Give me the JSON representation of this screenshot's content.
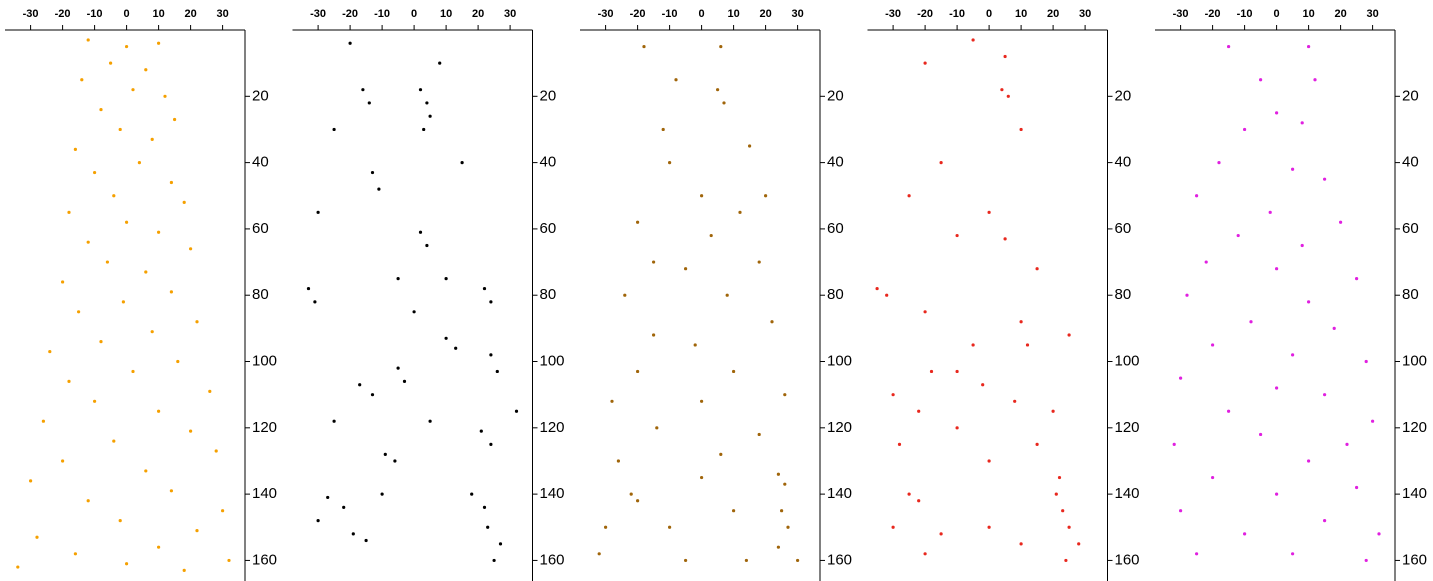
{
  "chart_data": [
    {
      "type": "scatter",
      "color": "#f5a000",
      "xlim": [
        -38,
        37
      ],
      "ylim": [
        0,
        165
      ],
      "y_reversed": true,
      "xticks": [
        -30,
        -20,
        -10,
        0,
        10,
        20,
        30
      ],
      "yticks": [
        20,
        40,
        60,
        80,
        100,
        120,
        140,
        160
      ],
      "x": [
        -12,
        0,
        10,
        -5,
        6,
        -14,
        2,
        12,
        -8,
        15,
        -2,
        8,
        -16,
        4,
        -10,
        14,
        -4,
        18,
        -18,
        0,
        10,
        -12,
        20,
        -6,
        6,
        -20,
        14,
        -1,
        -15,
        22,
        8,
        -8,
        -24,
        16,
        2,
        -18,
        26,
        -10,
        10,
        -26,
        20,
        -4,
        28,
        -20,
        6,
        -30,
        14,
        -12,
        30,
        -2,
        22,
        -28,
        10,
        -16,
        32,
        0,
        -34,
        18
      ],
      "values": [
        3,
        5,
        4,
        10,
        12,
        15,
        18,
        20,
        24,
        27,
        30,
        33,
        36,
        40,
        43,
        46,
        50,
        52,
        55,
        58,
        61,
        64,
        66,
        70,
        73,
        76,
        79,
        82,
        85,
        88,
        91,
        94,
        97,
        100,
        103,
        106,
        109,
        112,
        115,
        118,
        121,
        124,
        127,
        130,
        133,
        136,
        139,
        142,
        145,
        148,
        151,
        153,
        156,
        158,
        160,
        161,
        162,
        163
      ]
    },
    {
      "type": "scatter",
      "color": "#000000",
      "xlim": [
        -38,
        37
      ],
      "ylim": [
        0,
        165
      ],
      "y_reversed": true,
      "xticks": [
        -30,
        -20,
        -10,
        0,
        10,
        20,
        30
      ],
      "yticks": [
        20,
        40,
        60,
        80,
        100,
        120,
        140,
        160
      ],
      "x": [
        -16,
        -14,
        2,
        4,
        5,
        3,
        -13,
        -11,
        2,
        4,
        -33,
        -31,
        22,
        24,
        10,
        13,
        24,
        26,
        -17,
        -13,
        -5,
        -3,
        21,
        24,
        -9,
        -6,
        -27,
        -22,
        -19,
        -15,
        18,
        22,
        23,
        27,
        25,
        -30,
        -20,
        8,
        -25,
        15,
        -30,
        -5,
        10,
        -25,
        5,
        -10,
        32,
        0
      ],
      "values": [
        18,
        22,
        18,
        22,
        26,
        30,
        43,
        48,
        61,
        65,
        78,
        82,
        78,
        82,
        93,
        96,
        98,
        103,
        107,
        110,
        102,
        106,
        121,
        125,
        128,
        130,
        141,
        144,
        152,
        154,
        140,
        144,
        150,
        155,
        160,
        148,
        4,
        10,
        30,
        40,
        55,
        75,
        75,
        118,
        118,
        140,
        115,
        85
      ]
    },
    {
      "type": "scatter",
      "color": "#a0650a",
      "xlim": [
        -38,
        37
      ],
      "ylim": [
        0,
        165
      ],
      "y_reversed": true,
      "xticks": [
        -30,
        -20,
        -10,
        0,
        10,
        20,
        30
      ],
      "yticks": [
        20,
        40,
        60,
        80,
        100,
        120,
        140,
        160
      ],
      "x": [
        -18,
        6,
        5,
        7,
        -8,
        -12,
        15,
        -10,
        0,
        12,
        -20,
        3,
        -5,
        18,
        -24,
        8,
        -15,
        22,
        -2,
        -20,
        10,
        -28,
        0,
        26,
        -14,
        18,
        6,
        -26,
        -22,
        -20,
        24,
        26,
        25,
        27,
        24,
        -30,
        -10,
        10,
        -5,
        30,
        -32,
        14,
        0,
        -15,
        20
      ],
      "values": [
        5,
        5,
        18,
        22,
        15,
        30,
        35,
        40,
        50,
        55,
        58,
        62,
        72,
        70,
        80,
        80,
        92,
        88,
        95,
        103,
        103,
        112,
        112,
        110,
        120,
        122,
        128,
        130,
        140,
        142,
        134,
        137,
        145,
        150,
        156,
        150,
        150,
        145,
        160,
        160,
        158,
        160,
        135,
        70,
        50
      ]
    },
    {
      "type": "scatter",
      "color": "#e8281e",
      "xlim": [
        -38,
        37
      ],
      "ylim": [
        0,
        165
      ],
      "y_reversed": true,
      "xticks": [
        -30,
        -20,
        -10,
        0,
        10,
        20,
        30
      ],
      "yticks": [
        20,
        40,
        60,
        80,
        100,
        120,
        140,
        160
      ],
      "x": [
        -5,
        5,
        -20,
        4,
        6,
        10,
        -15,
        -25,
        0,
        -10,
        5,
        15,
        -35,
        -32,
        -20,
        10,
        25,
        -5,
        12,
        -18,
        -10,
        -2,
        -30,
        8,
        -22,
        20,
        -10,
        -28,
        15,
        0,
        22,
        21,
        23,
        -25,
        -22,
        -30,
        -15,
        0,
        25,
        28,
        24,
        -20,
        10
      ],
      "values": [
        3,
        8,
        10,
        18,
        20,
        30,
        40,
        50,
        55,
        62,
        63,
        72,
        78,
        80,
        85,
        88,
        92,
        95,
        95,
        103,
        103,
        107,
        110,
        112,
        115,
        115,
        120,
        125,
        125,
        130,
        135,
        140,
        145,
        140,
        142,
        150,
        152,
        150,
        150,
        155,
        160,
        158,
        155
      ]
    },
    {
      "type": "scatter",
      "color": "#e020e0",
      "xlim": [
        -38,
        37
      ],
      "ylim": [
        0,
        165
      ],
      "y_reversed": true,
      "xticks": [
        -30,
        -20,
        -10,
        0,
        10,
        20,
        30
      ],
      "yticks": [
        20,
        40,
        60,
        80,
        100,
        120,
        140,
        160
      ],
      "x": [
        -15,
        10,
        -5,
        12,
        0,
        -10,
        8,
        -18,
        5,
        15,
        -25,
        -2,
        20,
        -12,
        8,
        -22,
        0,
        25,
        -28,
        10,
        -8,
        18,
        -20,
        5,
        28,
        -30,
        0,
        15,
        -15,
        30,
        -5,
        22,
        -32,
        10,
        -20,
        25,
        0,
        -30,
        15,
        -10,
        32,
        -25,
        5,
        28
      ],
      "values": [
        5,
        5,
        15,
        15,
        25,
        30,
        28,
        40,
        42,
        45,
        50,
        55,
        58,
        62,
        65,
        70,
        72,
        75,
        80,
        82,
        88,
        90,
        95,
        98,
        100,
        105,
        108,
        110,
        115,
        118,
        122,
        125,
        125,
        130,
        135,
        138,
        140,
        145,
        148,
        152,
        152,
        158,
        158,
        160
      ]
    }
  ]
}
